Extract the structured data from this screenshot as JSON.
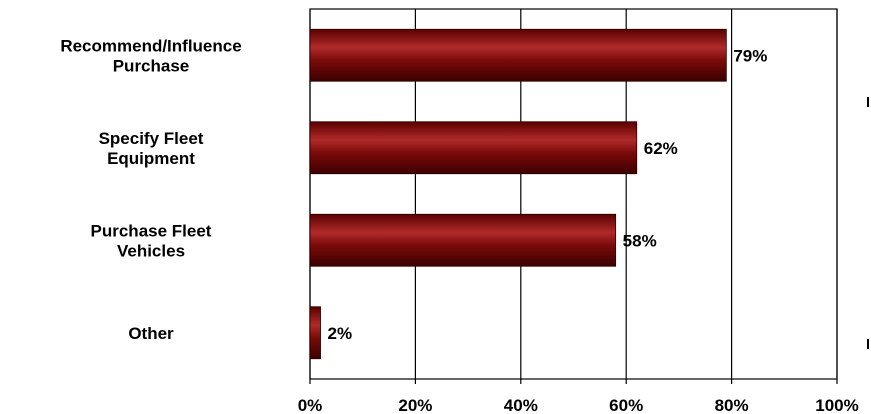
{
  "chart_data": {
    "type": "bar",
    "orientation": "horizontal",
    "categories": [
      [
        "Recommend/Influence",
        "Purchase"
      ],
      [
        "Specify Fleet",
        "Equipment"
      ],
      [
        "Purchase Fleet",
        "Vehicles"
      ],
      [
        "Other"
      ]
    ],
    "values": [
      79,
      62,
      58,
      2
    ],
    "data_labels": [
      "79%",
      "62%",
      "58%",
      "2%"
    ],
    "xlim": [
      0,
      100
    ],
    "xticks": [
      0,
      20,
      40,
      60,
      80,
      100
    ],
    "xtick_labels": [
      "0%",
      "20%",
      "40%",
      "60%",
      "80%",
      "100%"
    ],
    "grid": "vertical",
    "legend": "none",
    "bar_color": "#7a0a0a",
    "bar_highlight": "#c44040",
    "bar_shadow": "#3c0000"
  }
}
